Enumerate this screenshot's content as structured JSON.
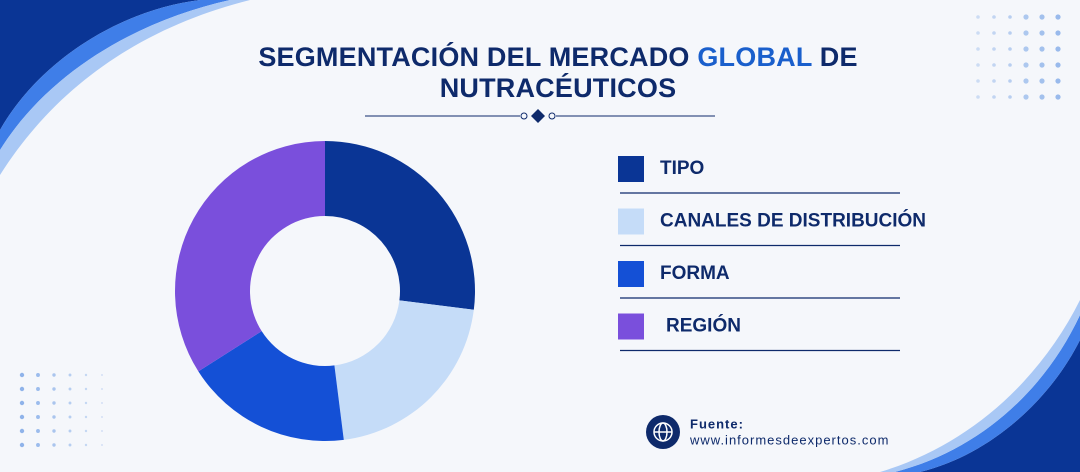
{
  "chart_data": {
    "type": "donut",
    "title_parts": [
      "SEGMENTACIÓN DEL MERCADO",
      "GLOBAL",
      "DE",
      "NUTRACÉUTICOS"
    ],
    "categories": [
      "TIPO",
      "CANALES DE DISTRIBUCIÓN",
      "FORMA",
      "REGIÓN"
    ],
    "values": [
      27,
      21,
      18,
      34
    ],
    "colors": [
      "#0a3595",
      "#c5dcf8",
      "#1450d6",
      "#7a4fdc"
    ],
    "source_label": "Fuente:",
    "source_url": "www.informesdeexpertos.com"
  }
}
